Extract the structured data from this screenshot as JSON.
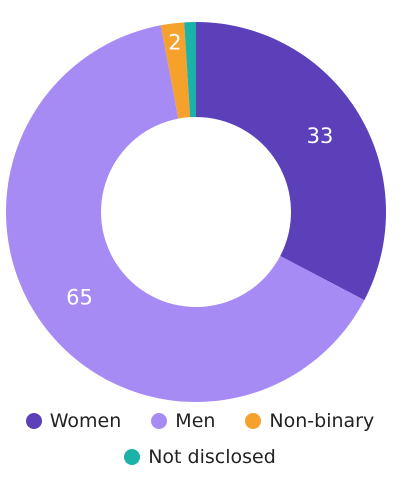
{
  "chart_data": {
    "type": "donut",
    "categories": [
      "Women",
      "Men",
      "Non-binary",
      "Not disclosed"
    ],
    "values": [
      33,
      65,
      2,
      1
    ],
    "colors": [
      "#5b40b9",
      "#a78bf4",
      "#f6a12c",
      "#1bb3a7"
    ],
    "legend": "bottom"
  }
}
